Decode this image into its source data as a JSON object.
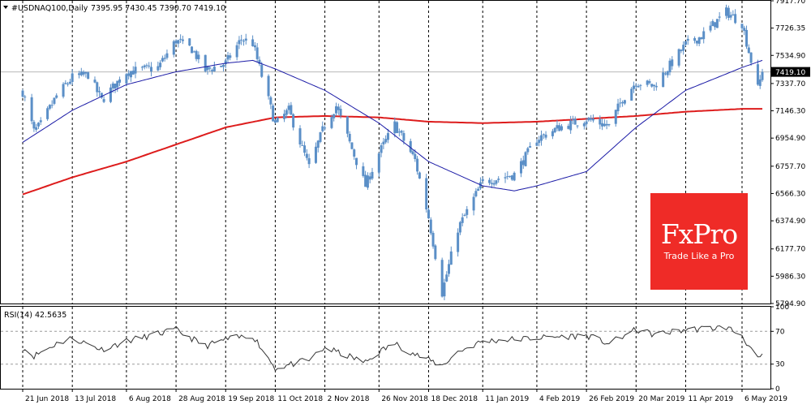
{
  "header": {
    "symbol": "#USDNAQ100,Daily",
    "ohlc": "7395.95 7430.45 7390.70 7419.10",
    "rsi_label": "RSI(14) 42.5635"
  },
  "price_axis": {
    "ticks": [
      "7917.70",
      "7726.35",
      "7534.90",
      "7337.70",
      "7146.30",
      "6954.90",
      "6757.70",
      "6566.30",
      "6374.90",
      "6177.70",
      "5986.30",
      "5794.90"
    ],
    "current_price": "7419.10"
  },
  "rsi_axis": {
    "ticks": [
      "100",
      "70",
      "30",
      "0"
    ]
  },
  "date_axis": {
    "ticks": [
      "21 Jun 2018",
      "13 Jul 2018",
      "6 Aug 2018",
      "28 Aug 2018",
      "19 Sep 2018",
      "11 Oct 2018",
      "2 Nov 2018",
      "26 Nov 2018",
      "18 Dec 2018",
      "11 Jan 2019",
      "4 Feb 2019",
      "26 Feb 2019",
      "20 Mar 2019",
      "11 Apr 2019",
      "6 May 2019"
    ]
  },
  "logo": {
    "brand": "FxPro",
    "tagline": "Trade Like a Pro"
  },
  "colors": {
    "candle": "#5b8fc7",
    "ma_fast": "#1a1aa6",
    "ma_slow": "#dd1c1c",
    "rsi": "#333333",
    "logo_bg": "#ef2b27"
  },
  "chart_data": {
    "type": "candlestick",
    "symbol": "#USDNAQ100",
    "timeframe": "Daily",
    "x_range": [
      "21 Jun 2018",
      "15 May 2019"
    ],
    "ylim": [
      5794.9,
      7917.7
    ],
    "grid": true,
    "close_path": [
      [
        "21 Jun 2018",
        7280
      ],
      [
        "26 Jun 2018",
        7000
      ],
      [
        "29 Jun 2018",
        7050
      ],
      [
        "6 Jul 2018",
        7250
      ],
      [
        "13 Jul 2018",
        7380
      ],
      [
        "20 Jul 2018",
        7400
      ],
      [
        "26 Jul 2018",
        7220
      ],
      [
        "6 Aug 2018",
        7420
      ],
      [
        "20 Aug 2018",
        7450
      ],
      [
        "28 Aug 2018",
        7640
      ],
      [
        "4 Sep 2018",
        7580
      ],
      [
        "10 Sep 2018",
        7430
      ],
      [
        "19 Sep 2018",
        7480
      ],
      [
        "26 Sep 2018",
        7650
      ],
      [
        "1 Oct 2018",
        7620
      ],
      [
        "11 Oct 2018",
        7050
      ],
      [
        "17 Oct 2018",
        7150
      ],
      [
        "26 Oct 2018",
        6750
      ],
      [
        "2 Nov 2018",
        7050
      ],
      [
        "7 Nov 2018",
        7180
      ],
      [
        "20 Nov 2018",
        6620
      ],
      [
        "26 Nov 2018",
        6850
      ],
      [
        "3 Dec 2018",
        7050
      ],
      [
        "12 Dec 2018",
        6800
      ],
      [
        "18 Dec 2018",
        6400
      ],
      [
        "24 Dec 2018",
        5870
      ],
      [
        "31 Dec 2018",
        6320
      ],
      [
        "11 Jan 2019",
        6650
      ],
      [
        "25 Jan 2019",
        6700
      ],
      [
        "4 Feb 2019",
        6950
      ],
      [
        "14 Feb 2019",
        7030
      ],
      [
        "26 Feb 2019",
        7090
      ],
      [
        "8 Mar 2019",
        7040
      ],
      [
        "14 Mar 2019",
        7230
      ],
      [
        "20 Mar 2019",
        7350
      ],
      [
        "28 Mar 2019",
        7320
      ],
      [
        "11 Apr 2019",
        7610
      ],
      [
        "18 Apr 2019",
        7670
      ],
      [
        "29 Apr 2019",
        7840
      ],
      [
        "6 May 2019",
        7760
      ],
      [
        "13 May 2019",
        7300
      ],
      [
        "15 May 2019",
        7419.1
      ]
    ],
    "ma_fast": [
      [
        "21 Jun 2018",
        6925
      ],
      [
        "13 Jul 2018",
        7150
      ],
      [
        "6 Aug 2018",
        7330
      ],
      [
        "28 Aug 2018",
        7420
      ],
      [
        "19 Sep 2018",
        7480
      ],
      [
        "1 Oct 2018",
        7500
      ],
      [
        "11 Oct 2018",
        7440
      ],
      [
        "2 Nov 2018",
        7290
      ],
      [
        "26 Nov 2018",
        7060
      ],
      [
        "18 Dec 2018",
        6790
      ],
      [
        "11 Jan 2019",
        6620
      ],
      [
        "25 Jan 2019",
        6585
      ],
      [
        "4 Feb 2019",
        6620
      ],
      [
        "26 Feb 2019",
        6720
      ],
      [
        "20 Mar 2019",
        7030
      ],
      [
        "11 Apr 2019",
        7290
      ],
      [
        "6 May 2019",
        7450
      ],
      [
        "15 May 2019",
        7500
      ]
    ],
    "ma_slow": [
      [
        "21 Jun 2018",
        6560
      ],
      [
        "13 Jul 2018",
        6680
      ],
      [
        "6 Aug 2018",
        6790
      ],
      [
        "28 Aug 2018",
        6910
      ],
      [
        "19 Sep 2018",
        7030
      ],
      [
        "11 Oct 2018",
        7100
      ],
      [
        "2 Nov 2018",
        7110
      ],
      [
        "26 Nov 2018",
        7100
      ],
      [
        "18 Dec 2018",
        7070
      ],
      [
        "11 Jan 2019",
        7060
      ],
      [
        "4 Feb 2019",
        7070
      ],
      [
        "26 Feb 2019",
        7090
      ],
      [
        "20 Mar 2019",
        7110
      ],
      [
        "11 Apr 2019",
        7140
      ],
      [
        "6 May 2019",
        7160
      ],
      [
        "15 May 2019",
        7160
      ]
    ],
    "rsi": {
      "period": 14,
      "current": 42.5635,
      "ylim": [
        0,
        100
      ],
      "levels": [
        30,
        70
      ],
      "path": [
        [
          "21 Jun 2018",
          50
        ],
        [
          "26 Jun 2018",
          40
        ],
        [
          "6 Jul 2018",
          55
        ],
        [
          "13 Jul 2018",
          62
        ],
        [
          "26 Jul 2018",
          48
        ],
        [
          "6 Aug 2018",
          58
        ],
        [
          "28 Aug 2018",
          72
        ],
        [
          "10 Sep 2018",
          52
        ],
        [
          "19 Sep 2018",
          60
        ],
        [
          "1 Oct 2018",
          65
        ],
        [
          "11 Oct 2018",
          25
        ],
        [
          "26 Oct 2018",
          35
        ],
        [
          "2 Nov 2018",
          50
        ],
        [
          "20 Nov 2018",
          32
        ],
        [
          "26 Nov 2018",
          45
        ],
        [
          "3 Dec 2018",
          55
        ],
        [
          "12 Dec 2018",
          42
        ],
        [
          "18 Dec 2018",
          35
        ],
        [
          "24 Dec 2018",
          28
        ],
        [
          "31 Dec 2018",
          45
        ],
        [
          "11 Jan 2019",
          58
        ],
        [
          "4 Feb 2019",
          62
        ],
        [
          "26 Feb 2019",
          65
        ],
        [
          "8 Mar 2019",
          55
        ],
        [
          "20 Mar 2019",
          72
        ],
        [
          "28 Mar 2019",
          66
        ],
        [
          "11 Apr 2019",
          72
        ],
        [
          "29 Apr 2019",
          75
        ],
        [
          "6 May 2019",
          65
        ],
        [
          "13 May 2019",
          35
        ],
        [
          "15 May 2019",
          42.5635
        ]
      ]
    }
  }
}
